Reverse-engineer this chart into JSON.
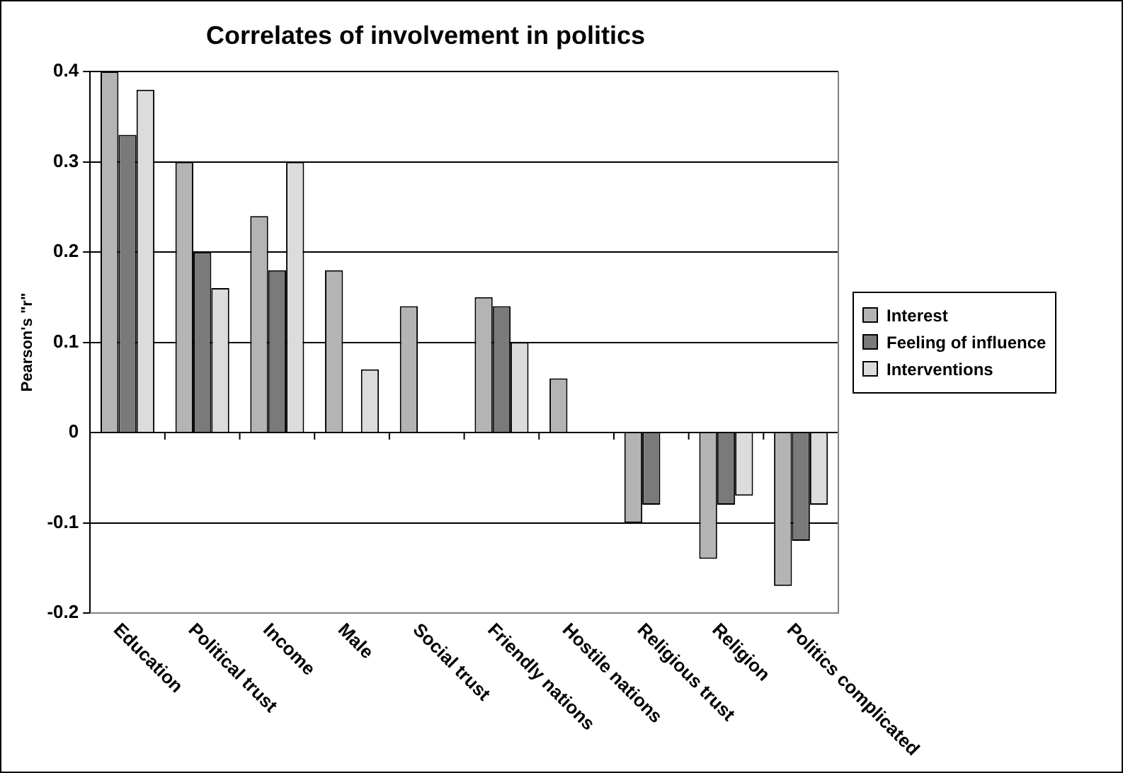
{
  "chart_data": {
    "type": "bar",
    "title": "Correlates of involvement in politics",
    "ylabel": "Pearson's \"r\"",
    "categories": [
      "Education",
      "Political trust",
      "Income",
      "Male",
      "Social trust",
      "Friendly nations",
      "Hostile nations",
      "Religious trust",
      "Religion",
      "Politics complicated"
    ],
    "series": [
      {
        "name": "Interest",
        "color": "#b4b4b4",
        "values": [
          0.4,
          0.3,
          0.24,
          0.18,
          0.14,
          0.15,
          0.06,
          -0.1,
          -0.14,
          -0.17
        ]
      },
      {
        "name": "Feeling of influence",
        "color": "#7a7a7a",
        "values": [
          0.33,
          0.2,
          0.18,
          null,
          null,
          0.14,
          null,
          -0.08,
          -0.08,
          -0.12
        ]
      },
      {
        "name": "Interventions",
        "color": "#dcdcdc",
        "values": [
          0.38,
          0.16,
          0.3,
          0.07,
          null,
          0.1,
          null,
          null,
          -0.07,
          -0.08
        ]
      }
    ],
    "ylim": [
      -0.2,
      0.4
    ],
    "yticks": [
      -0.2,
      -0.1,
      0,
      0.1,
      0.2,
      0.3,
      0.4
    ],
    "grid": "y",
    "legend": "right"
  }
}
